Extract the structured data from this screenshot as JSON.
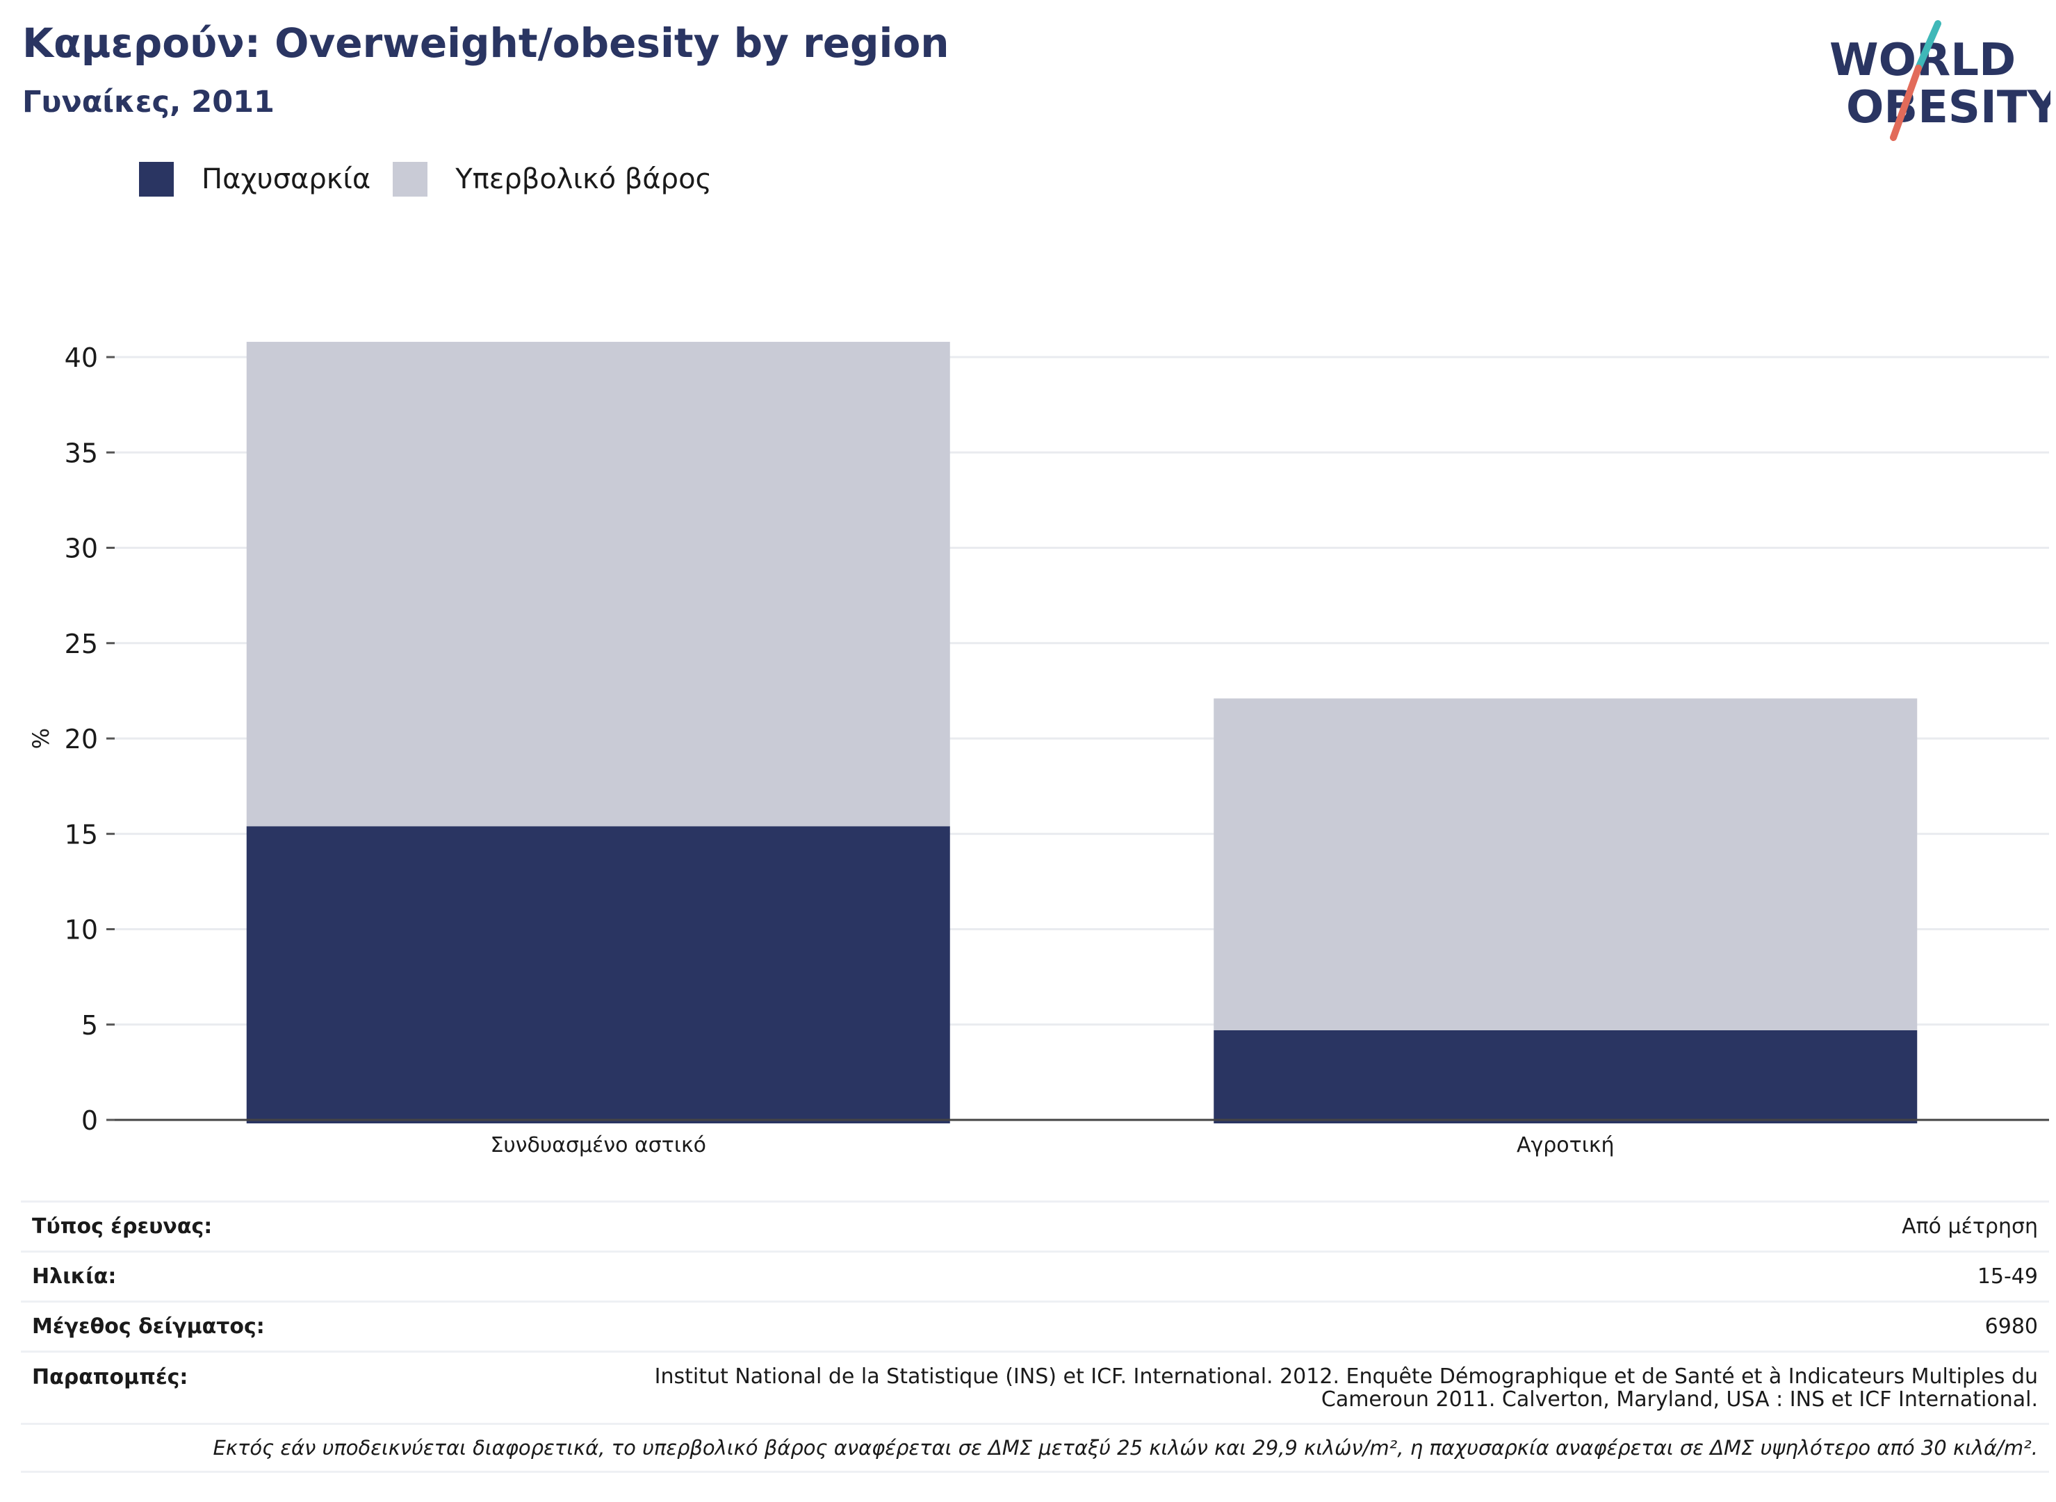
{
  "header": {
    "title": "Καμερούν: Overweight/obesity by region",
    "subtitle": "Γυναίκες, 2011",
    "logo_line1": "WORLD",
    "logo_line2": "OBESITY"
  },
  "colors": {
    "obesity": "#2a3562",
    "overweight": "#c9cbd6",
    "accent_teal": "#3fb8b8",
    "accent_red": "#e26b5a"
  },
  "chart_data": {
    "type": "bar",
    "stacked": true,
    "categories": [
      "Συνδυασμένο αστικό",
      "Αγροτική"
    ],
    "series": [
      {
        "name": "Παχυσαρκία",
        "values": [
          15.4,
          4.7
        ]
      },
      {
        "name": "Υπερβολικό βάρος",
        "values": [
          25.4,
          17.4
        ]
      }
    ],
    "ylabel": "%",
    "ylim": [
      0,
      40
    ],
    "yticks": [
      0,
      5,
      10,
      15,
      20,
      25,
      30,
      35,
      40
    ],
    "grid": true,
    "legend": "top-left"
  },
  "info": {
    "rows": [
      {
        "key": "Τύπος έρευνας:",
        "value": "Από μέτρηση"
      },
      {
        "key": "Ηλικία:",
        "value": "15-49"
      },
      {
        "key": "Μέγεθος δείγματος:",
        "value": "6980"
      },
      {
        "key": "Παραπομπές:",
        "value": "Institut National de la Statistique (INS) et ICF. International. 2012. Enquête Démographique et de Santé et à Indicateurs Multiples du Cameroun 2011. Calverton, Maryland, USA : INS et ICF International."
      }
    ],
    "note": "Εκτός εάν υποδεικνύεται διαφορετικά, το υπερβολικό βάρος αναφέρεται σε ΔΜΣ μεταξύ 25 κιλών και 29,9 κιλών/m², η παχυσαρκία αναφέρεται σε ΔΜΣ υψηλότερο από 30 κιλά/m²."
  }
}
